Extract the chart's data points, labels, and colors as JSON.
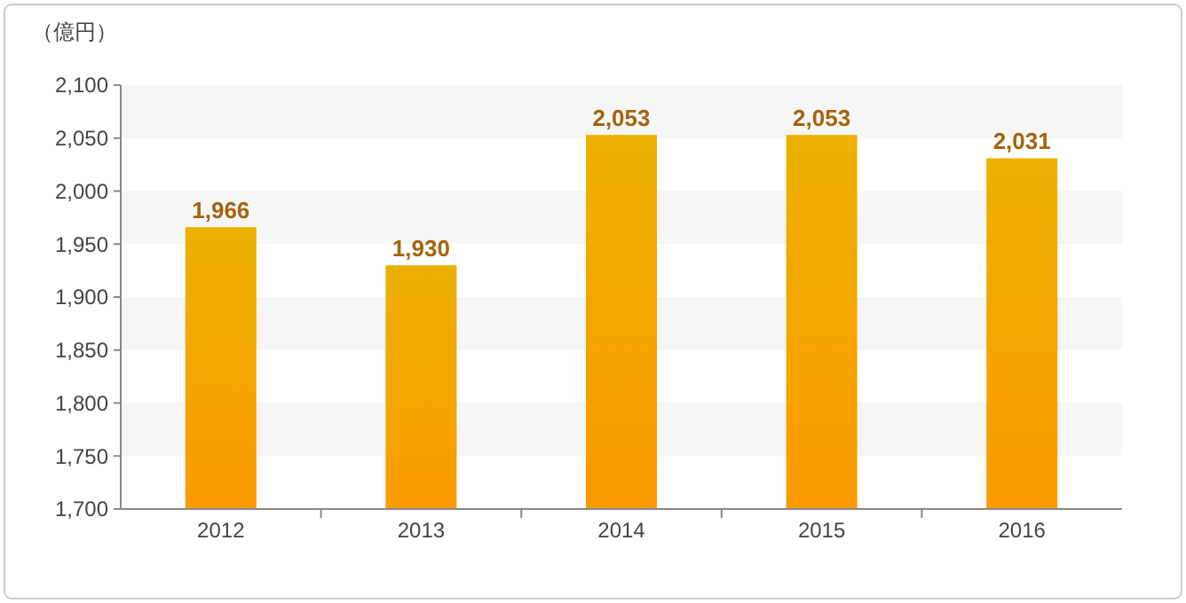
{
  "chart_data": {
    "type": "bar",
    "ylabel": "（億円）",
    "categories": [
      "2012",
      "2013",
      "2014",
      "2015",
      "2016"
    ],
    "values": [
      1966,
      1930,
      2053,
      2053,
      2031
    ],
    "color": "#f5a300",
    "ylim": [
      1700,
      2100
    ],
    "yticks": [
      {
        "value": 1700,
        "label": "1,700"
      },
      {
        "value": 1750,
        "label": "1,750"
      },
      {
        "value": 1800,
        "label": "1,800"
      },
      {
        "value": 1850,
        "label": "1,850"
      },
      {
        "value": 1900,
        "label": "1,900"
      },
      {
        "value": 1950,
        "label": "1,950"
      },
      {
        "value": 2000,
        "label": "2,000"
      },
      {
        "value": 2050,
        "label": "2,050"
      },
      {
        "value": 2100,
        "label": "2,100"
      }
    ],
    "value_labels": [
      "1,966",
      "1,930",
      "2,053",
      "2,053",
      "2,031"
    ]
  }
}
